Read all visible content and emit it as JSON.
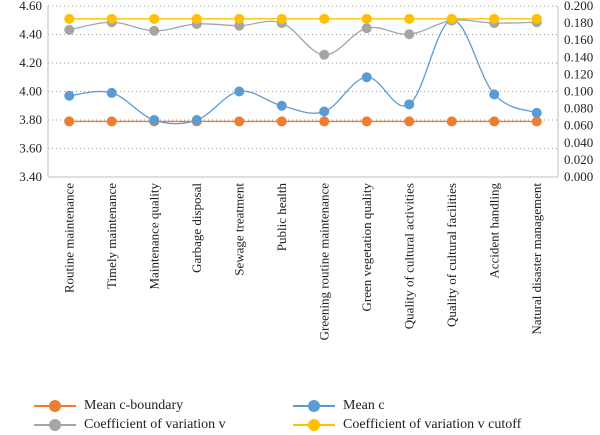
{
  "chart_data": {
    "type": "line",
    "categories": [
      "Routine maintenance",
      "Timely maintenance",
      "Maintenance quality",
      "Garbage disposal",
      "Sewage treatment",
      "Public health",
      "Greening routine maintenance",
      "Green vegetation quality",
      "Quality of cultural activities",
      "Quality of cultural facilities",
      "Accident handling",
      "Natural disaster management"
    ],
    "y_left": {
      "min": 3.4,
      "max": 4.6,
      "ticks": [
        "3.40",
        "3.60",
        "3.80",
        "4.00",
        "4.20",
        "4.40",
        "4.60"
      ]
    },
    "y_right": {
      "min": 0.0,
      "max": 0.2,
      "ticks": [
        "0.000",
        "0.020",
        "0.040",
        "0.060",
        "0.080",
        "0.100",
        "0.120",
        "0.140",
        "0.160",
        "0.180",
        "0.200"
      ]
    },
    "grid": "horizontal-dotted",
    "legend_position": "bottom",
    "series": [
      {
        "name": "Mean c-boundary",
        "axis": "left",
        "color": "#ED7D31",
        "smooth": false,
        "values": [
          3.79,
          3.79,
          3.79,
          3.79,
          3.79,
          3.79,
          3.79,
          3.79,
          3.79,
          3.79,
          3.79,
          3.79
        ]
      },
      {
        "name": "Mean c",
        "axis": "left",
        "color": "#5B9BD5",
        "smooth": true,
        "values": [
          3.97,
          3.99,
          3.8,
          3.8,
          4.0,
          3.9,
          3.86,
          4.1,
          3.91,
          4.5,
          3.98,
          3.85
        ]
      },
      {
        "name": "Coefficient of variation v",
        "axis": "right",
        "color": "#A5A5A5",
        "smooth": true,
        "values": [
          0.172,
          0.181,
          0.171,
          0.179,
          0.177,
          0.18,
          0.143,
          0.174,
          0.167,
          0.183,
          0.18,
          0.181
        ]
      },
      {
        "name": "Coefficient of variation v cutoff",
        "axis": "right",
        "color": "#FFC000",
        "smooth": false,
        "values": [
          0.185,
          0.185,
          0.185,
          0.185,
          0.185,
          0.185,
          0.185,
          0.185,
          0.185,
          0.185,
          0.185,
          0.185
        ]
      }
    ]
  },
  "legend": [
    {
      "label": "Mean c-boundary",
      "color": "#ED7D31"
    },
    {
      "label": "Mean c",
      "color": "#5B9BD5"
    },
    {
      "label": "Coefficient of variation v",
      "color": "#A5A5A5"
    },
    {
      "label": "Coefficient of variation v cutoff",
      "color": "#FFC000"
    }
  ]
}
